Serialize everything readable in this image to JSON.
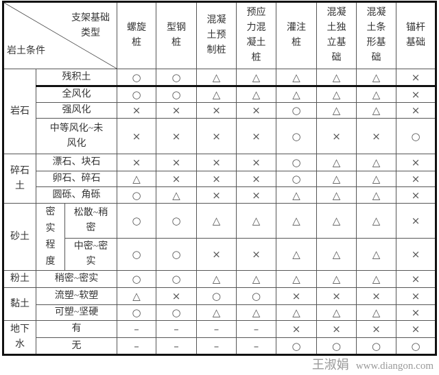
{
  "header": {
    "diagonal_top": "支架基础\n类型",
    "diagonal_bottom": "岩土条件",
    "columns": [
      "螺旋\n桩",
      "型钢\n桩",
      "混凝\n土预\n制桩",
      "预应\n力混\n凝土\n桩",
      "灌注\n桩",
      "混凝\n土独\n立基\n础",
      "混凝\n土条\n形基\n础",
      "锚杆\n基础"
    ]
  },
  "groups": [
    {
      "label": "岩石",
      "rows": [
        {
          "label": "残积土",
          "values": [
            "○",
            "○",
            "△",
            "△",
            "△",
            "△",
            "△",
            "×"
          ]
        },
        {
          "label": "全风化",
          "values": [
            "○",
            "○",
            "△",
            "△",
            "△",
            "△",
            "△",
            "×"
          ]
        },
        {
          "label": "强风化",
          "values": [
            "×",
            "×",
            "×",
            "×",
            "○",
            "△",
            "△",
            "×"
          ]
        },
        {
          "label": "中等风化~未\n风化",
          "values": [
            "×",
            "×",
            "×",
            "×",
            "○",
            "×",
            "×",
            "○"
          ]
        }
      ]
    },
    {
      "label": "碎石\n土",
      "rows": [
        {
          "label": "漂石、块石",
          "values": [
            "×",
            "×",
            "×",
            "×",
            "○",
            "△",
            "△",
            "×"
          ]
        },
        {
          "label": "卵石、碎石",
          "values": [
            "△",
            "×",
            "×",
            "×",
            "○",
            "△",
            "△",
            "×"
          ]
        },
        {
          "label": "圆砾、角砾",
          "values": [
            "○",
            "△",
            "×",
            "×",
            "△",
            "△",
            "△",
            "×"
          ]
        }
      ]
    },
    {
      "label": "砂土",
      "sub_label": "密\n实\n程\n度",
      "rows": [
        {
          "label": "松散~稍\n密",
          "values": [
            "○",
            "○",
            "△",
            "△",
            "△",
            "△",
            "△",
            "×"
          ]
        },
        {
          "label": "中密~密\n实",
          "values": [
            "○",
            "○",
            "×",
            "×",
            "△",
            "△",
            "△",
            "×"
          ]
        }
      ]
    },
    {
      "label": "粉土",
      "rows": [
        {
          "label": "稍密~密实",
          "values": [
            "○",
            "○",
            "△",
            "△",
            "△",
            "△",
            "△",
            "×"
          ]
        }
      ]
    },
    {
      "label": "黏土",
      "rows": [
        {
          "label": "流塑~软塑",
          "values": [
            "△",
            "×",
            "○",
            "○",
            "×",
            "×",
            "×",
            "×"
          ]
        },
        {
          "label": "可塑~坚硬",
          "values": [
            "○",
            "○",
            "△",
            "△",
            "△",
            "△",
            "△",
            "×"
          ]
        }
      ]
    },
    {
      "label": "地下\n水",
      "rows": [
        {
          "label": "有",
          "values": [
            "–",
            "–",
            "–",
            "–",
            "×",
            "×",
            "×",
            "×"
          ]
        },
        {
          "label": "无",
          "values": [
            "–",
            "–",
            "–",
            "–",
            "○",
            "○",
            "○",
            "○"
          ]
        }
      ]
    }
  ],
  "watermark": {
    "name": "王淑娟",
    "url": "www.diangon.com"
  }
}
